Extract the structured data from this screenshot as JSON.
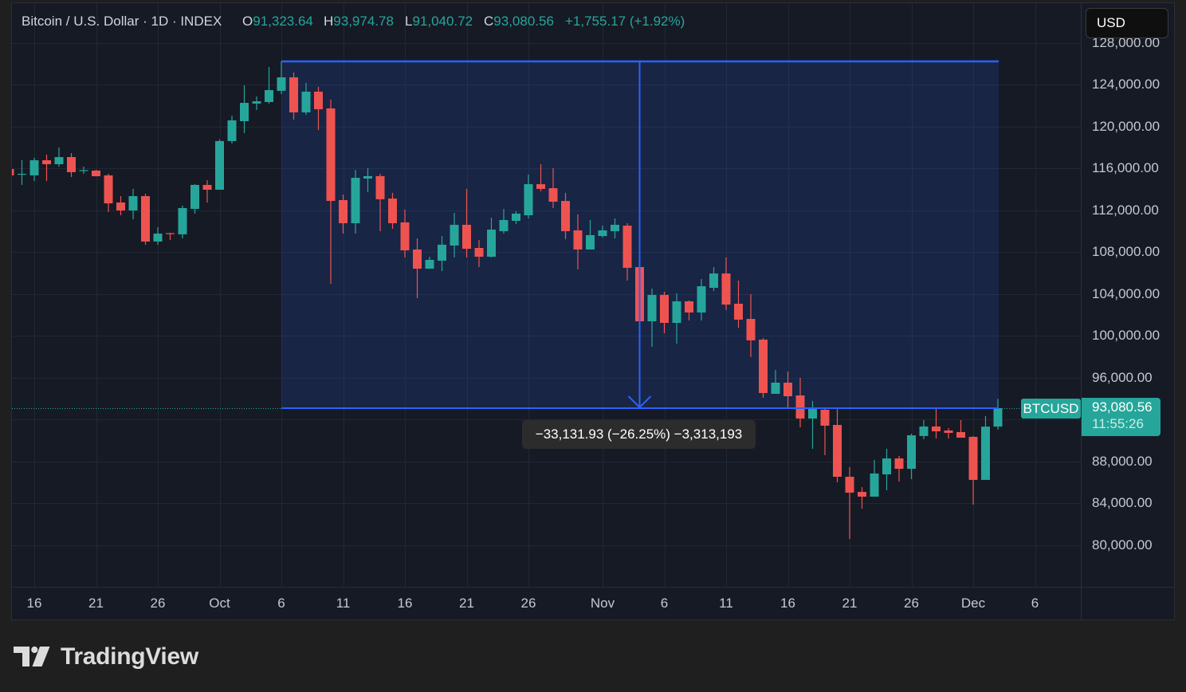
{
  "header": {
    "title": "Bitcoin / U.S. Dollar · 1D · INDEX",
    "open_label": "O",
    "open": "91,323.64",
    "high_label": "H",
    "high": "93,974.78",
    "low_label": "L",
    "low": "91,040.72",
    "close_label": "C",
    "close": "93,080.56",
    "change": "+1,755.17 (+1.92%)"
  },
  "currency_button": {
    "label": "USD"
  },
  "current_price": {
    "symbol": "BTCUSD",
    "price": "93,080.56",
    "countdown": "11:55:26"
  },
  "measure": {
    "label": "−33,131.93 (−26.25%) −3,313,193",
    "from_price": 126212.49,
    "to_price": 93080.56,
    "start_day": 20,
    "end_day": 78,
    "arrow_day": 49
  },
  "price_axis": {
    "labels": [
      {
        "text": "128,000.00",
        "price": 128000
      },
      {
        "text": "124,000.00",
        "price": 124000
      },
      {
        "text": "120,000.00",
        "price": 120000
      },
      {
        "text": "116,000.00",
        "price": 116000
      },
      {
        "text": "112,000.00",
        "price": 112000
      },
      {
        "text": "108,000.00",
        "price": 108000
      },
      {
        "text": "104,000.00",
        "price": 104000
      },
      {
        "text": "100,000.00",
        "price": 100000
      },
      {
        "text": "96,000.00",
        "price": 96000
      },
      {
        "text": "88,000.00",
        "price": 88000
      },
      {
        "text": "84,000.00",
        "price": 84000
      },
      {
        "text": "80,000.00",
        "price": 80000
      }
    ],
    "grid_prices": [
      80000,
      84000,
      88000,
      92000,
      96000,
      100000,
      104000,
      108000,
      112000,
      116000,
      120000,
      124000,
      128000
    ]
  },
  "time_axis": {
    "labels": [
      {
        "text": "16",
        "day": 0
      },
      {
        "text": "21",
        "day": 5
      },
      {
        "text": "26",
        "day": 10
      },
      {
        "text": "Oct",
        "day": 15
      },
      {
        "text": "6",
        "day": 20
      },
      {
        "text": "11",
        "day": 25
      },
      {
        "text": "16",
        "day": 30
      },
      {
        "text": "21",
        "day": 35
      },
      {
        "text": "26",
        "day": 40
      },
      {
        "text": "Nov",
        "day": 46
      },
      {
        "text": "6",
        "day": 51
      },
      {
        "text": "11",
        "day": 56
      },
      {
        "text": "16",
        "day": 61
      },
      {
        "text": "21",
        "day": 66
      },
      {
        "text": "26",
        "day": 71
      },
      {
        "text": "Dec",
        "day": 76
      },
      {
        "text": "6",
        "day": 81
      }
    ]
  },
  "branding": {
    "logo_text": "TradingView"
  },
  "colors": {
    "up": "#26a69a",
    "down": "#ef5350",
    "measure": "#2962ff",
    "grid": "#222735",
    "chart_bg": "#161a25",
    "page_bg": "#1f1f1f"
  },
  "chart_data": {
    "type": "candlestick",
    "title": "Bitcoin / U.S. Dollar · 1D · INDEX",
    "symbol": "BTCUSD",
    "interval": "1D",
    "xlabel": "",
    "ylabel": "",
    "x_tick_labels": [
      "16",
      "21",
      "26",
      "Oct",
      "6",
      "11",
      "16",
      "21",
      "26",
      "Nov",
      "6",
      "11",
      "16",
      "21",
      "26",
      "Dec",
      "6"
    ],
    "y_tick_labels": [
      "128,000.00",
      "124,000.00",
      "120,000.00",
      "116,000.00",
      "112,000.00",
      "108,000.00",
      "104,000.00",
      "100,000.00",
      "96,000.00",
      "88,000.00",
      "84,000.00",
      "80,000.00"
    ],
    "ylim": [
      76000,
      131800
    ],
    "grid": true,
    "legend": null,
    "fields": [
      "date",
      "open",
      "high",
      "low",
      "close"
    ],
    "candles": [
      [
        "Sep 14",
        115930,
        116080,
        115170,
        115320
      ],
      [
        "Sep 15",
        115400,
        116770,
        114410,
        115470
      ],
      [
        "Sep 16",
        115320,
        117000,
        114790,
        116770
      ],
      [
        "Sep 17",
        116770,
        117300,
        114790,
        116390
      ],
      [
        "Sep 18",
        116390,
        117990,
        116160,
        117070
      ],
      [
        "Sep 19",
        117070,
        117450,
        115170,
        115630
      ],
      [
        "Sep 20",
        115740,
        116160,
        115470,
        115820
      ],
      [
        "Sep 21",
        115780,
        115850,
        115240,
        115240
      ],
      [
        "Sep 22",
        115320,
        115470,
        111820,
        112650
      ],
      [
        "Sep 23",
        112730,
        113340,
        111510,
        111970
      ],
      [
        "Sep 24",
        111970,
        114030,
        111130,
        113340
      ],
      [
        "Sep 25",
        113340,
        113570,
        108700,
        109000
      ],
      [
        "Sep 26",
        109000,
        110370,
        108700,
        109760
      ],
      [
        "Sep 27",
        109800,
        109840,
        109150,
        109720
      ],
      [
        "Sep 28",
        109690,
        112430,
        109300,
        112200
      ],
      [
        "Sep 29",
        112120,
        114480,
        111670,
        114410
      ],
      [
        "Sep 30",
        114410,
        114860,
        112730,
        113950
      ],
      [
        "Oct 1",
        113950,
        118750,
        113950,
        118600
      ],
      [
        "Oct 2",
        118600,
        121030,
        118370,
        120580
      ],
      [
        "Oct 3",
        120500,
        123930,
        119360,
        122250
      ],
      [
        "Oct 4",
        122180,
        122860,
        121570,
        122400
      ],
      [
        "Oct 5",
        122330,
        125680,
        122180,
        123470
      ],
      [
        "Oct 6",
        123400,
        126212,
        123090,
        124690
      ],
      [
        "Oct 7",
        124690,
        125150,
        120650,
        121340
      ],
      [
        "Oct 8",
        121340,
        124160,
        121110,
        123320
      ],
      [
        "Oct 9",
        123320,
        123780,
        119660,
        121640
      ],
      [
        "Oct 10",
        121720,
        122560,
        104960,
        112880
      ],
      [
        "Oct 11",
        112960,
        113490,
        109760,
        110750
      ],
      [
        "Oct 12",
        110750,
        115850,
        109760,
        115090
      ],
      [
        "Oct 13",
        115020,
        116010,
        113720,
        115250
      ],
      [
        "Oct 14",
        115250,
        115470,
        109990,
        113040
      ],
      [
        "Oct 15",
        113110,
        113650,
        110220,
        110750
      ],
      [
        "Oct 16",
        110830,
        112050,
        107480,
        108160
      ],
      [
        "Oct 17",
        108240,
        109300,
        103590,
        106410
      ],
      [
        "Oct 18",
        106410,
        107550,
        106410,
        107250
      ],
      [
        "Oct 19",
        107170,
        109530,
        106180,
        108700
      ],
      [
        "Oct 20",
        108620,
        111740,
        107480,
        110600
      ],
      [
        "Oct 21",
        110600,
        114030,
        107480,
        108310
      ],
      [
        "Oct 22",
        108390,
        109150,
        106560,
        107550
      ],
      [
        "Oct 23",
        107550,
        111280,
        107480,
        110140
      ],
      [
        "Oct 24",
        109990,
        112120,
        109760,
        111060
      ],
      [
        "Oct 25",
        110980,
        111890,
        110680,
        111670
      ],
      [
        "Oct 26",
        111510,
        115400,
        111210,
        114480
      ],
      [
        "Oct 27",
        114480,
        116390,
        113800,
        114030
      ],
      [
        "Oct 28",
        114100,
        116010,
        112200,
        112810
      ],
      [
        "Oct 29",
        112880,
        113650,
        109230,
        109990
      ],
      [
        "Oct 30",
        110070,
        111590,
        106330,
        108240
      ],
      [
        "Oct 31",
        108240,
        111060,
        108240,
        109610
      ],
      [
        "Nov 1",
        109530,
        110520,
        109380,
        110070
      ],
      [
        "Nov 2",
        109990,
        111210,
        109300,
        110600
      ],
      [
        "Nov 3",
        110520,
        110750,
        105270,
        106490
      ],
      [
        "Nov 4",
        106560,
        107320,
        98950,
        101380
      ],
      [
        "Nov 5",
        101380,
        104510,
        98950,
        103900
      ],
      [
        "Nov 6",
        103900,
        104200,
        100240,
        101230
      ],
      [
        "Nov 7",
        101230,
        104050,
        99250,
        103290
      ],
      [
        "Nov 8",
        103290,
        103360,
        101460,
        102220
      ],
      [
        "Nov 9",
        102220,
        105420,
        101460,
        104730
      ],
      [
        "Nov 10",
        104580,
        106560,
        104280,
        105950
      ],
      [
        "Nov 11",
        105950,
        107480,
        102450,
        102980
      ],
      [
        "Nov 12",
        103060,
        105270,
        100770,
        101540
      ],
      [
        "Nov 13",
        101610,
        103970,
        97960,
        99560
      ],
      [
        "Nov 14",
        99630,
        99780,
        94070,
        94530
      ],
      [
        "Nov 15",
        94450,
        96740,
        94450,
        95520
      ],
      [
        "Nov 16",
        95520,
        96590,
        93080,
        94220
      ],
      [
        "Nov 17",
        94300,
        95980,
        91250,
        92090
      ],
      [
        "Nov 18",
        92090,
        93770,
        89200,
        93000
      ],
      [
        "Nov 19",
        92930,
        93000,
        88590,
        91410
      ],
      [
        "Nov 20",
        91480,
        93000,
        86000,
        86530
      ],
      [
        "Nov 21",
        86530,
        87450,
        80590,
        85010
      ],
      [
        "Nov 22",
        85080,
        85540,
        83480,
        84630
      ],
      [
        "Nov 23",
        84630,
        88130,
        84630,
        86840
      ],
      [
        "Nov 24",
        86760,
        89200,
        85240,
        88280
      ],
      [
        "Nov 25",
        88280,
        88510,
        86070,
        87290
      ],
      [
        "Nov 26",
        87290,
        90640,
        86300,
        90490
      ],
      [
        "Nov 27",
        90420,
        91940,
        90110,
        91330
      ],
      [
        "Nov 28",
        91330,
        93080,
        90190,
        90870
      ],
      [
        "Nov 29",
        90950,
        91180,
        90190,
        90720
      ],
      [
        "Nov 30",
        90800,
        91940,
        90260,
        90260
      ],
      [
        "Dec 1",
        90340,
        90420,
        83870,
        86230
      ],
      [
        "Dec 2",
        86230,
        92320,
        86230,
        91320
      ],
      [
        "Dec 3",
        91323.64,
        93974.78,
        91040.72,
        93080.56
      ]
    ],
    "last": {
      "open": 91323.64,
      "high": 93974.78,
      "low": 91040.72,
      "close": 93080.56,
      "change": 1755.17,
      "change_pct": 1.92
    },
    "annotations": [
      {
        "type": "price_range",
        "start": "Oct 6",
        "end": "Dec 3",
        "from": 126212.49,
        "to": 93080.56,
        "change": -33131.93,
        "change_pct": -26.25,
        "ticks": -3313193,
        "label": "−33,131.93 (−26.25%) −3,313,193"
      },
      {
        "type": "price_line",
        "price": 93080.56,
        "label": "BTCUSD",
        "countdown": "11:55:26"
      }
    ]
  }
}
